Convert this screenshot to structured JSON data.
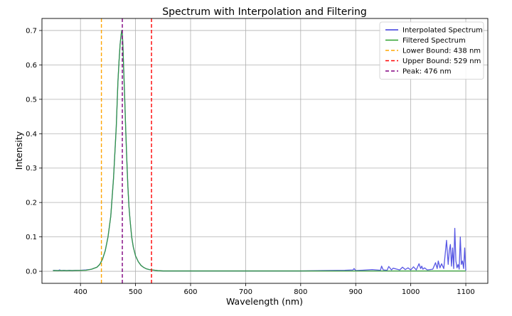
{
  "chart_data": {
    "type": "line",
    "title": "Spectrum with Interpolation and Filtering",
    "xlabel": "Wavelength (nm)",
    "ylabel": "Intensity",
    "xlim": [
      330,
      1140
    ],
    "ylim": [
      -0.035,
      0.735
    ],
    "xticks": [
      400,
      500,
      600,
      700,
      800,
      900,
      1000,
      1100
    ],
    "yticks": [
      0.0,
      0.1,
      0.2,
      0.3,
      0.4,
      0.5,
      0.6,
      0.7
    ],
    "grid": true,
    "legend_position": "top-right",
    "series": [
      {
        "name": "Interpolated Spectrum",
        "color": "#3b3bdf",
        "x": [
          350,
          360,
          362,
          365,
          370,
          375,
          380,
          385,
          390,
          400,
          410,
          420,
          430,
          435,
          440,
          445,
          450,
          455,
          460,
          465,
          468,
          470,
          472,
          474,
          475,
          476,
          477,
          478,
          480,
          482,
          484,
          486,
          488,
          490,
          493,
          496,
          500,
          505,
          510,
          515,
          520,
          525,
          530,
          540,
          550,
          560,
          600,
          700,
          800,
          840,
          880,
          895,
          897,
          900,
          930,
          945,
          947,
          950,
          957,
          960,
          965,
          968,
          975,
          980,
          985,
          990,
          995,
          1000,
          1005,
          1010,
          1015,
          1018,
          1020,
          1022,
          1025,
          1030,
          1040,
          1045,
          1048,
          1050,
          1053,
          1056,
          1060,
          1065,
          1068,
          1070,
          1072,
          1074,
          1076,
          1078,
          1080,
          1082,
          1084,
          1086,
          1088,
          1090,
          1092,
          1094,
          1096,
          1098,
          1100
        ],
        "y": [
          0.003,
          0.002,
          0.004,
          0.002,
          0.003,
          0.002,
          0.003,
          0.002,
          0.003,
          0.003,
          0.004,
          0.006,
          0.012,
          0.02,
          0.035,
          0.06,
          0.1,
          0.16,
          0.27,
          0.42,
          0.55,
          0.61,
          0.66,
          0.69,
          0.7,
          0.69,
          0.66,
          0.61,
          0.52,
          0.42,
          0.33,
          0.25,
          0.19,
          0.15,
          0.1,
          0.07,
          0.045,
          0.028,
          0.017,
          0.011,
          0.007,
          0.005,
          0.004,
          0.002,
          0.001,
          0.001,
          0.001,
          0.001,
          0.001,
          0.002,
          0.003,
          0.004,
          0.008,
          0.002,
          0.005,
          0.003,
          0.015,
          0.004,
          0.003,
          0.014,
          0.004,
          0.009,
          0.006,
          0.004,
          0.012,
          0.005,
          0.01,
          0.004,
          0.013,
          0.004,
          0.022,
          0.008,
          0.015,
          0.006,
          0.01,
          0.004,
          0.006,
          0.025,
          0.008,
          0.03,
          0.01,
          0.022,
          0.008,
          0.09,
          0.02,
          0.06,
          0.078,
          0.015,
          0.068,
          0.008,
          0.125,
          0.03,
          0.01,
          0.02,
          0.006,
          0.1,
          0.02,
          0.03,
          0.008,
          0.068,
          0.002
        ]
      },
      {
        "name": "Filtered Spectrum",
        "color": "#2ca02c",
        "x": [
          350,
          380,
          410,
          420,
          430,
          435,
          440,
          445,
          450,
          455,
          460,
          465,
          468,
          470,
          472,
          474,
          475,
          476,
          477,
          478,
          480,
          482,
          484,
          486,
          488,
          490,
          493,
          496,
          500,
          505,
          510,
          515,
          520,
          525,
          530,
          540,
          550,
          600,
          700,
          800,
          900,
          1000,
          1100
        ],
        "y": [
          0.002,
          0.002,
          0.003,
          0.006,
          0.012,
          0.02,
          0.035,
          0.06,
          0.1,
          0.16,
          0.27,
          0.42,
          0.55,
          0.61,
          0.66,
          0.69,
          0.7,
          0.69,
          0.66,
          0.61,
          0.52,
          0.42,
          0.33,
          0.25,
          0.19,
          0.15,
          0.1,
          0.07,
          0.045,
          0.028,
          0.017,
          0.011,
          0.007,
          0.005,
          0.004,
          0.002,
          0.001,
          0.001,
          0.001,
          0.001,
          0.001,
          0.001,
          0.001
        ]
      }
    ],
    "vlines": [
      {
        "name": "Lower Bound: 438 nm",
        "x": 438,
        "color": "#ffa500"
      },
      {
        "name": "Upper Bound: 529 nm",
        "x": 529,
        "color": "#ff0000"
      },
      {
        "name": "Peak: 476 nm",
        "x": 476,
        "color": "#800080"
      }
    ]
  }
}
